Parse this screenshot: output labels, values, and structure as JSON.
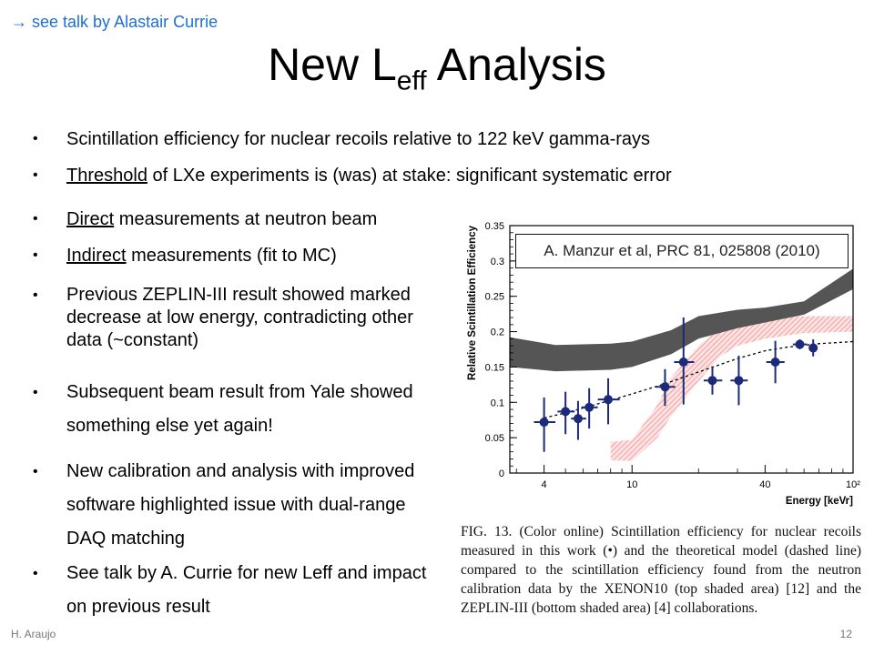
{
  "note": {
    "arrow": "→",
    "text": "see talk by Alastair Currie"
  },
  "title": {
    "main": "New L",
    "sub": "eff",
    "tail": " Analysis"
  },
  "bullets": [
    {
      "parts": [
        {
          "t": "Scintillation efficiency for nuclear recoils relative to 122 keV gamma-rays",
          "u": false
        }
      ]
    },
    {
      "parts": [
        {
          "t": "Threshold",
          "u": true
        },
        {
          "t": " of LXe experiments is (was) at stake: significant systematic error",
          "u": false
        }
      ]
    },
    {
      "parts": [
        {
          "t": "Direct",
          "u": true
        },
        {
          "t": " measurements at neutron beam",
          "u": false
        }
      ]
    },
    {
      "parts": [
        {
          "t": "Indirect",
          "u": true
        },
        {
          "t": " measurements (fit to MC)",
          "u": false
        }
      ]
    },
    {
      "parts": [
        {
          "t": "Previous ZEPLIN-III result showed marked decrease at low energy, contradicting other data (~constant)",
          "u": false
        }
      ]
    },
    {
      "parts": [
        {
          "t": "Subsequent beam result from Yale showed something else yet again!",
          "u": false
        }
      ]
    },
    {
      "parts": [
        {
          "t": "New calibration and analysis with improved software highlighted issue with dual-range DAQ matching",
          "u": false
        }
      ]
    },
    {
      "parts": [
        {
          "t": "See talk by A. Currie for new Leff and impact on previous result",
          "u": false
        }
      ]
    }
  ],
  "citation": "A. Manzur et al, PRC 81, 025808 (2010)",
  "caption": "FIG. 13. (Color online) Scintillation efficiency for nuclear recoils measured in this work (•) and the theoretical model (dashed line) compared to the scintillation efficiency found from the neutron calibration data by the XENON10 (top shaded area) [12] and the ZEPLIN-III (bottom shaded area) [4] collaborations.",
  "footer": {
    "author": "H. Araujo",
    "page": "12"
  },
  "chart_data": {
    "type": "scatter",
    "xlabel": "Energy [keVr]",
    "ylabel": "Relative Scintillation Efficiency",
    "xscale": "log",
    "xlim": [
      2.8,
      100
    ],
    "ylim": [
      0,
      0.35
    ],
    "xticks": [
      {
        "v": 4,
        "label": "4"
      },
      {
        "v": 10,
        "label": "10"
      },
      {
        "v": 40,
        "label": "40"
      },
      {
        "v": 100,
        "label": "10²"
      }
    ],
    "yticks": [
      {
        "v": 0,
        "label": "0"
      },
      {
        "v": 0.05,
        "label": "0.05"
      },
      {
        "v": 0.1,
        "label": "0.1"
      },
      {
        "v": 0.15,
        "label": "0.15"
      },
      {
        "v": 0.2,
        "label": "0.2"
      },
      {
        "v": 0.25,
        "label": "0.25"
      },
      {
        "v": 0.3,
        "label": "0.3"
      },
      {
        "v": 0.35,
        "label": "0.35"
      }
    ],
    "points": [
      {
        "x": 4.0,
        "y": 0.072,
        "xerr": [
          0.4,
          0.5
        ],
        "yerr": [
          0.042,
          0.035
        ]
      },
      {
        "x": 5.0,
        "y": 0.087,
        "xerr": [
          0.4,
          0.5
        ],
        "yerr": [
          0.032,
          0.028
        ]
      },
      {
        "x": 5.7,
        "y": 0.077,
        "xerr": [
          0.4,
          0.5
        ],
        "yerr": [
          0.03,
          0.025
        ]
      },
      {
        "x": 6.4,
        "y": 0.093,
        "xerr": [
          0.5,
          0.6
        ],
        "yerr": [
          0.03,
          0.027
        ]
      },
      {
        "x": 7.8,
        "y": 0.104,
        "xerr": [
          0.8,
          1.0
        ],
        "yerr": [
          0.035,
          0.03
        ]
      },
      {
        "x": 14.1,
        "y": 0.122,
        "xerr": [
          1.3,
          1.6
        ],
        "yerr": [
          0.027,
          0.025
        ]
      },
      {
        "x": 17.1,
        "y": 0.157,
        "xerr": [
          1.6,
          2.0
        ],
        "yerr": [
          0.06,
          0.063
        ]
      },
      {
        "x": 23.1,
        "y": 0.131,
        "xerr": [
          2.0,
          2.5
        ],
        "yerr": [
          0.02,
          0.02
        ]
      },
      {
        "x": 30.4,
        "y": 0.131,
        "xerr": [
          2.5,
          3.0
        ],
        "yerr": [
          0.035,
          0.035
        ]
      },
      {
        "x": 44.5,
        "y": 0.157,
        "xerr": [
          4.0,
          4.5
        ],
        "yerr": [
          0.03,
          0.03
        ]
      },
      {
        "x": 57.4,
        "y": 0.182,
        "xerr": [
          4.0,
          4.5
        ],
        "yerr": [
          0.007,
          0.007
        ]
      },
      {
        "x": 66.0,
        "y": 0.177,
        "xerr": [
          0.0,
          0.0
        ],
        "yerr": [
          0.012,
          0.012
        ]
      }
    ],
    "model": [
      [
        4.0,
        0.078
      ],
      [
        5.0,
        0.085
      ],
      [
        6.0,
        0.092
      ],
      [
        8.0,
        0.103
      ],
      [
        10,
        0.112
      ],
      [
        14,
        0.126
      ],
      [
        20,
        0.143
      ],
      [
        30,
        0.162
      ],
      [
        40,
        0.173
      ],
      [
        50,
        0.178
      ],
      [
        70,
        0.183
      ],
      [
        100,
        0.186
      ]
    ],
    "xenon10_band": {
      "x": [
        2.8,
        4.5,
        8.0,
        10,
        15,
        20,
        30,
        40,
        60,
        100
      ],
      "upper": [
        0.192,
        0.181,
        0.183,
        0.186,
        0.202,
        0.222,
        0.231,
        0.234,
        0.243,
        0.289
      ],
      "lower": [
        0.15,
        0.144,
        0.146,
        0.15,
        0.168,
        0.19,
        0.205,
        0.213,
        0.224,
        0.26
      ],
      "color": "#555555"
    },
    "zeplin3_band": {
      "x": [
        8.0,
        10,
        13,
        15,
        20,
        25,
        30,
        40,
        60,
        100
      ],
      "upper": [
        0.044,
        0.047,
        0.096,
        0.135,
        0.18,
        0.205,
        0.215,
        0.22,
        0.222,
        0.222
      ],
      "lower": [
        0.018,
        0.017,
        0.05,
        0.08,
        0.13,
        0.165,
        0.18,
        0.19,
        0.198,
        0.2
      ],
      "color": "#f2a0a0"
    },
    "point_color": "#1c2a7a"
  }
}
